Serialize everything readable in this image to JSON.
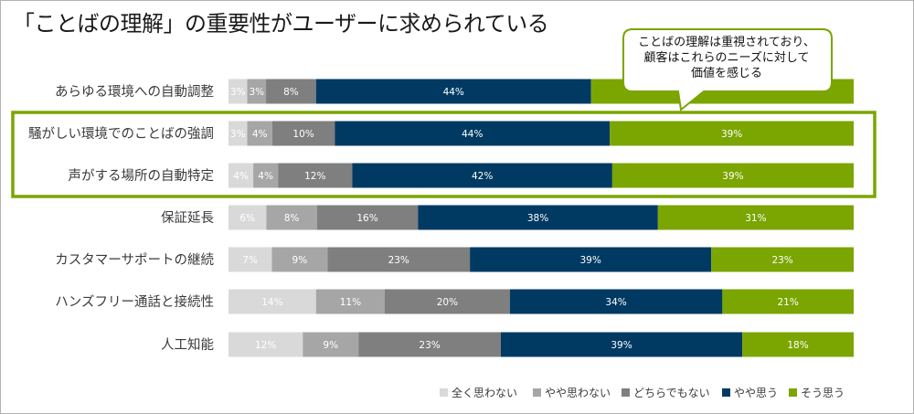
{
  "title": "「ことばの理解」の重要性がユーザーに求められている",
  "callout": {
    "line1": "ことばの理解は重視されており、",
    "line2": "顧客はこれらのニーズに対して",
    "line3": "価値を感じる"
  },
  "colors": {
    "series": [
      "#d9d9d9",
      "#a6a6a6",
      "#7f7f7f",
      "#003a63",
      "#7ba500"
    ],
    "highlight": "#7ba500"
  },
  "chart_data": {
    "type": "bar",
    "orientation": "horizontal",
    "stacked": true,
    "categories": [
      "あらゆる環境への自動調整",
      "騒がしい環境でのことばの強調",
      "声がする場所の自動特定",
      "保証延長",
      "カスタマーサポートの継続",
      "ハンズフリー通話と接続性",
      "人工知能"
    ],
    "series": [
      {
        "name": "全く思わない",
        "values": [
          3,
          3,
          4,
          6,
          7,
          14,
          12
        ],
        "labels": [
          "3%",
          "3%",
          "4%",
          "6%",
          "7%",
          "14%",
          "12%"
        ]
      },
      {
        "name": "やや思わない",
        "values": [
          3,
          4,
          4,
          8,
          9,
          11,
          9
        ],
        "labels": [
          "3%",
          "4%",
          "4%",
          "8%",
          "9%",
          "11%",
          "9%"
        ]
      },
      {
        "name": "どちらでもない",
        "values": [
          8,
          10,
          12,
          16,
          23,
          20,
          23
        ],
        "labels": [
          "8%",
          "10%",
          "12%",
          "16%",
          "23%",
          "20%",
          "23%"
        ]
      },
      {
        "name": "やや思う",
        "values": [
          44,
          44,
          42,
          38,
          39,
          34,
          39
        ],
        "labels": [
          "44%",
          "44%",
          "42%",
          "38%",
          "39%",
          "34%",
          "39%"
        ]
      },
      {
        "name": "そう思う",
        "values": [
          42,
          39,
          39,
          31,
          23,
          21,
          18
        ],
        "labels": [
          "",
          "39%",
          "39%",
          "31%",
          "23%",
          "21%",
          "18%"
        ]
      }
    ],
    "highlighted_categories": [
      "騒がしい環境でのことばの強調",
      "声がする場所の自動特定"
    ],
    "legend_position": "bottom-right",
    "grid": false
  }
}
